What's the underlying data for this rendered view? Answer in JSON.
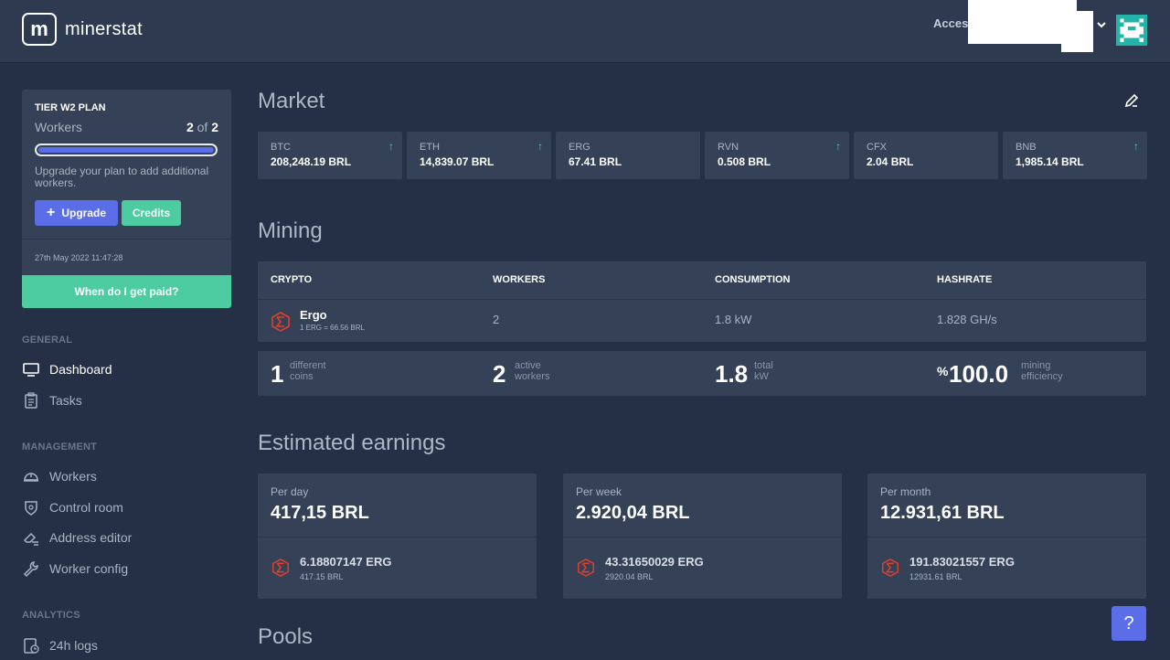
{
  "header": {
    "logo_letter": "m",
    "brand": "minerstat",
    "access_label": "Acces"
  },
  "plan": {
    "title": "TIER W2 PLAN",
    "workers_label": "Workers",
    "workers_used": "2",
    "workers_of": "of",
    "workers_total": "2",
    "usage_fraction": 1.0,
    "note": "Upgrade your plan to add additional workers.",
    "upgrade_label": "Upgrade",
    "credits_label": "Credits",
    "date": "27th May 2022 11:47:28",
    "paid_label": "When do I get paid?"
  },
  "nav": {
    "general_title": "GENERAL",
    "dashboard": "Dashboard",
    "tasks": "Tasks",
    "management_title": "MANAGEMENT",
    "workers": "Workers",
    "control_room": "Control room",
    "address_editor": "Address editor",
    "worker_config": "Worker config",
    "analytics_title": "ANALYTICS",
    "logs": "24h logs"
  },
  "market": {
    "title": "Market",
    "coins": [
      {
        "symbol": "BTC",
        "price": "208,248.19 BRL",
        "arrow": "↑"
      },
      {
        "symbol": "ETH",
        "price": "14,839.07 BRL",
        "arrow": "↑"
      },
      {
        "symbol": "ERG",
        "price": "67.41 BRL",
        "arrow": ""
      },
      {
        "symbol": "RVN",
        "price": "0.508 BRL",
        "arrow": "↑"
      },
      {
        "symbol": "CFX",
        "price": "2.04 BRL",
        "arrow": ""
      },
      {
        "symbol": "BNB",
        "price": "1,985.14 BRL",
        "arrow": "↑"
      }
    ]
  },
  "mining": {
    "title": "Mining",
    "headers": [
      "CRYPTO",
      "WORKERS",
      "CONSUMPTION",
      "HASHRATE"
    ],
    "row": {
      "name": "Ergo",
      "rate": "1 ERG = 66.56 BRL",
      "workers": "2",
      "consumption": "1.8 kW",
      "hashrate": "1.828 GH/s"
    },
    "stats": [
      {
        "value": "1",
        "l1": "different",
        "l2": "coins"
      },
      {
        "value": "2",
        "l1": "active",
        "l2": "workers"
      },
      {
        "value": "1.8",
        "l1": "total",
        "l2": "kW"
      },
      {
        "value": "100.0",
        "prefix": "%",
        "l1": "mining",
        "l2": "efficiency"
      }
    ]
  },
  "earnings": {
    "title": "Estimated earnings",
    "cards": [
      {
        "label": "Per day",
        "value": "417,15 BRL",
        "erg": "6.18807147 ERG",
        "brl": "417.15 BRL"
      },
      {
        "label": "Per week",
        "value": "2.920,04 BRL",
        "erg": "43.31650029 ERG",
        "brl": "2920.04 BRL"
      },
      {
        "label": "Per month",
        "value": "12.931,61 BRL",
        "erg": "191.83021557 ERG",
        "brl": "12931.61 BRL"
      }
    ]
  },
  "pools": {
    "title": "Pools"
  },
  "help_label": "?",
  "colors": {
    "accent": "#5b6ee8",
    "green": "#4ccca0",
    "ergo": "#e0412a"
  }
}
